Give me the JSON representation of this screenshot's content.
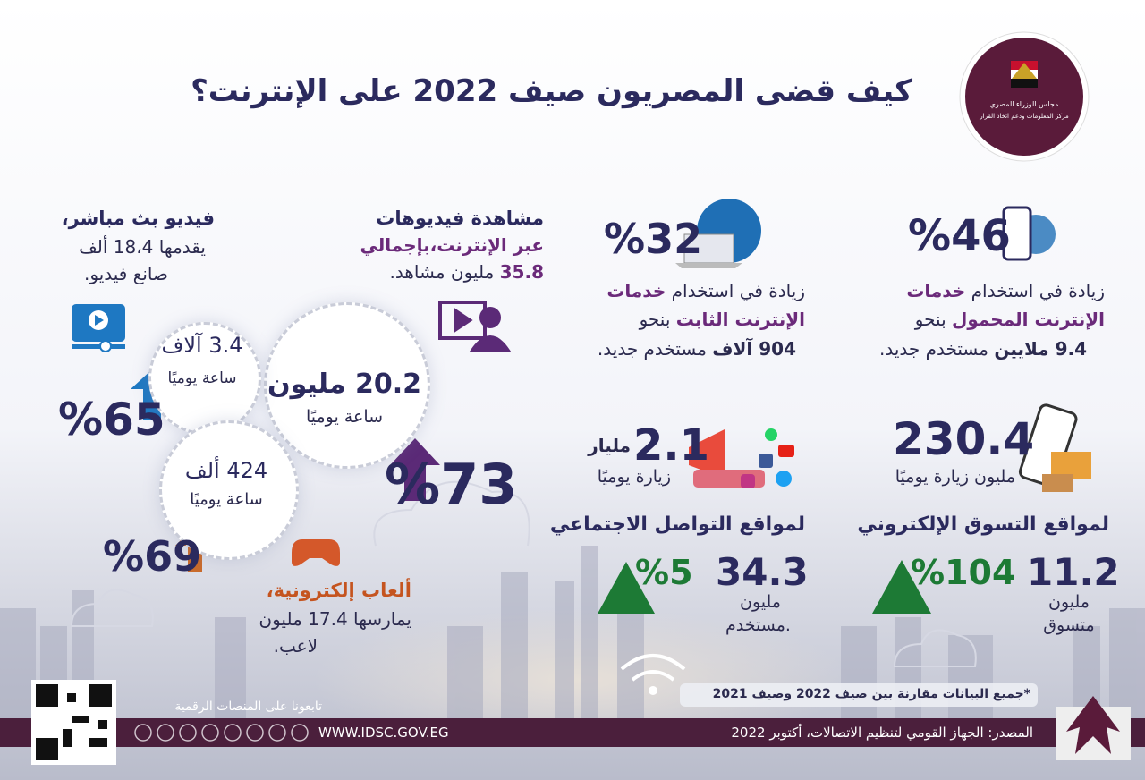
{
  "header": {
    "title": "كيف قضى المصريون صيف 2022 على الإنترنت؟",
    "logo_line1": "مجلس الوزراء المصري",
    "logo_line2": "مركز المعلومات ودعم اتخاذ القرار"
  },
  "mobile": {
    "percent": "%46",
    "line1": "زيادة في استخدام",
    "highlight1": "خدمات",
    "highlight2": "الإنترنت المحمول",
    "line2": "بنحو",
    "amount": "9.4 ملايين",
    "line3": "مستخدم جديد."
  },
  "fixed": {
    "percent": "%32",
    "line1": "زيادة في استخدام",
    "highlight1": "خدمات",
    "highlight2": "الإنترنت الثابت",
    "line2": "بنحو",
    "amount": "904 آلاف",
    "line3": "مستخدم جديد."
  },
  "ecommerce": {
    "visits": "230.4",
    "visits_unit": "مليون زيارة يوميًا",
    "title": "لمواقع التسوق الإلكتروني",
    "shoppers": "11.2",
    "shoppers_unit1": "مليون",
    "shoppers_unit2": "متسوق",
    "growth": "%104"
  },
  "social": {
    "visits": "2.1",
    "visits_unit": "مليار",
    "visits_label": "زيارة يوميًا",
    "title": "لمواقع التواصل الاجتماعي",
    "users": "34.3",
    "users_unit1": "مليون",
    "users_unit2": "مستخدم.",
    "growth": "%5"
  },
  "videos": {
    "title": "مشاهدة فيديوهات",
    "line1": "عبر الإنترنت،بإجمالي",
    "amount": "35.8",
    "line2": "مليون مشاهد.",
    "hours": "20.2 مليون",
    "hours_label": "ساعة يوميًا",
    "growth": "%73"
  },
  "live": {
    "title": "فيديو بث مباشر،",
    "line1": "يقدمها 18،4 ألف",
    "line2": "صانع فيديو.",
    "hours": "3.4 آلاف",
    "hours_label": "ساعة يوميًا",
    "growth": "%65"
  },
  "games": {
    "hours": "424 ألف",
    "hours_label": "ساعة يوميًا",
    "growth": "%69",
    "title": "ألعاب إلكترونية،",
    "line1": "يمارسها 17.4 مليون",
    "line2": "لاعب."
  },
  "footer": {
    "note": "*جميع البيانات مقارنة بين صيف 2022 وصيف 2021",
    "source": "المصدر: الجهاز القومي لتنظيم الاتصالات، أكتوبر 2022",
    "follow": "تابعونا على المنصات الرقمية",
    "url": "WWW.IDSC.GOV.EG"
  }
}
